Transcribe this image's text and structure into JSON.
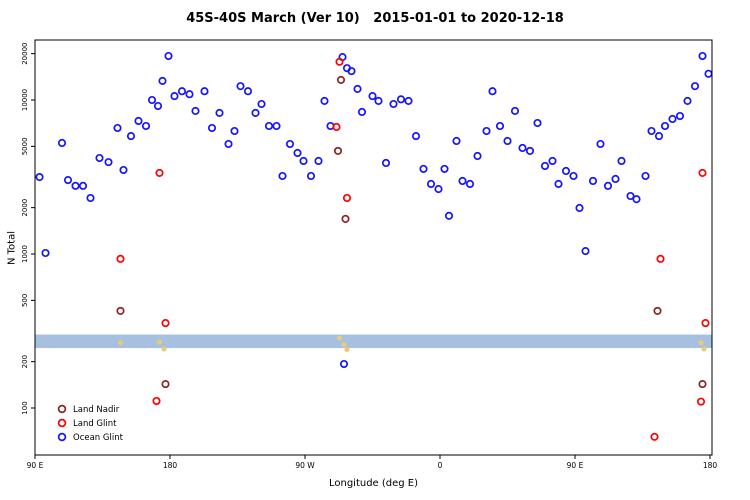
{
  "chart_data": {
    "type": "scatter",
    "title": "45S-40S March (Ver 10)   2015-01-01 to 2020-12-18",
    "xlabel": "Longitude (deg E)",
    "ylabel": "N Total",
    "x_axis": {
      "range": [
        90,
        540
      ],
      "ticks": [
        90,
        180,
        270,
        360,
        450,
        540
      ],
      "tick_labels": [
        "90 E",
        "180",
        "90 W",
        "0",
        "90 E",
        "180"
      ],
      "note": "longitude axis wraps: 90E -> 180 -> 90W -> 0 -> 90E -> 180"
    },
    "y_axis": {
      "scale": "log",
      "range": [
        50,
        24500
      ],
      "ticks": [
        100,
        200,
        500,
        1000,
        2000,
        5000,
        10000,
        20000
      ],
      "tick_labels": [
        "100",
        "200",
        "500",
        "1000",
        "2000",
        "5000",
        "10000",
        "20000"
      ]
    },
    "band": {
      "y_min": 245,
      "y_max": 300,
      "color": "#a6c1df"
    },
    "band_marks": {
      "color": "#e9c97c",
      "points": [
        [
          147,
          265
        ],
        [
          173,
          268
        ],
        [
          176,
          242
        ],
        [
          293,
          285
        ],
        [
          296,
          258
        ],
        [
          298,
          240
        ],
        [
          534,
          265
        ],
        [
          536,
          242
        ]
      ]
    },
    "series": [
      {
        "name": "Land Nadir",
        "color": "#8b2323",
        "points": [
          [
            147,
            427
          ],
          [
            177,
            143
          ],
          [
            294,
            13500
          ],
          [
            292,
            4670
          ],
          [
            297,
            1690
          ],
          [
            505,
            427
          ],
          [
            535,
            143
          ]
        ]
      },
      {
        "name": "Land Glint",
        "color": "#ff0000",
        "points": [
          [
            147,
            930
          ],
          [
            171,
            111
          ],
          [
            173,
            3360
          ],
          [
            177,
            356
          ],
          [
            291,
            6680
          ],
          [
            293,
            17700
          ],
          [
            298,
            2310
          ],
          [
            503,
            65
          ],
          [
            507,
            930
          ],
          [
            534,
            110
          ],
          [
            535,
            3360
          ],
          [
            537,
            356
          ]
        ]
      },
      {
        "name": "Ocean Glint",
        "color": "#1414ff",
        "points": [
          [
            93,
            3160
          ],
          [
            97,
            1015
          ],
          [
            108,
            5260
          ],
          [
            112,
            3020
          ],
          [
            117,
            2770
          ],
          [
            122,
            2770
          ],
          [
            127,
            2310
          ],
          [
            133,
            4200
          ],
          [
            139,
            3950
          ],
          [
            145,
            6580
          ],
          [
            149,
            3510
          ],
          [
            154,
            5830
          ],
          [
            159,
            7310
          ],
          [
            164,
            6780
          ],
          [
            168,
            10000
          ],
          [
            172,
            9140
          ],
          [
            175,
            13300
          ],
          [
            179,
            19300
          ],
          [
            183,
            10600
          ],
          [
            188,
            11400
          ],
          [
            193,
            10900
          ],
          [
            197,
            8490
          ],
          [
            203,
            11400
          ],
          [
            208,
            6580
          ],
          [
            213,
            8240
          ],
          [
            219,
            5180
          ],
          [
            223,
            6290
          ],
          [
            227,
            12300
          ],
          [
            232,
            11400
          ],
          [
            237,
            8240
          ],
          [
            241,
            9420
          ],
          [
            246,
            6780
          ],
          [
            251,
            6780
          ],
          [
            255,
            3210
          ],
          [
            260,
            5180
          ],
          [
            265,
            4530
          ],
          [
            269,
            4020
          ],
          [
            274,
            3210
          ],
          [
            279,
            4020
          ],
          [
            283,
            9860
          ],
          [
            287,
            6780
          ],
          [
            295,
            19000
          ],
          [
            296,
            193
          ],
          [
            298,
            16100
          ],
          [
            301,
            15400
          ],
          [
            305,
            11800
          ],
          [
            308,
            8360
          ],
          [
            315,
            10600
          ],
          [
            319,
            9860
          ],
          [
            324,
            3900
          ],
          [
            329,
            9420
          ],
          [
            334,
            10100
          ],
          [
            339,
            9860
          ],
          [
            344,
            5830
          ],
          [
            349,
            3570
          ],
          [
            354,
            2850
          ],
          [
            359,
            2640
          ],
          [
            363,
            3570
          ],
          [
            366,
            1770
          ],
          [
            371,
            5420
          ],
          [
            375,
            2980
          ],
          [
            380,
            2850
          ],
          [
            385,
            4330
          ],
          [
            391,
            6290
          ],
          [
            395,
            11400
          ],
          [
            400,
            6780
          ],
          [
            405,
            5420
          ],
          [
            410,
            8490
          ],
          [
            415,
            4880
          ],
          [
            420,
            4670
          ],
          [
            425,
            7090
          ],
          [
            430,
            3730
          ],
          [
            435,
            4020
          ],
          [
            439,
            2850
          ],
          [
            444,
            3460
          ],
          [
            449,
            3210
          ],
          [
            453,
            1990
          ],
          [
            457,
            1045
          ],
          [
            462,
            2980
          ],
          [
            467,
            5180
          ],
          [
            472,
            2770
          ],
          [
            477,
            3070
          ],
          [
            481,
            4020
          ],
          [
            487,
            2380
          ],
          [
            491,
            2270
          ],
          [
            497,
            3210
          ],
          [
            501,
            6290
          ],
          [
            506,
            5830
          ],
          [
            510,
            6780
          ],
          [
            515,
            7530
          ],
          [
            520,
            7870
          ],
          [
            525,
            9860
          ],
          [
            530,
            12300
          ],
          [
            535,
            19300
          ],
          [
            539,
            14800
          ]
        ]
      }
    ],
    "legend": {
      "position": "bottom-left",
      "entries": [
        "Land Nadir",
        "Land Glint",
        "Ocean Glint"
      ]
    }
  }
}
